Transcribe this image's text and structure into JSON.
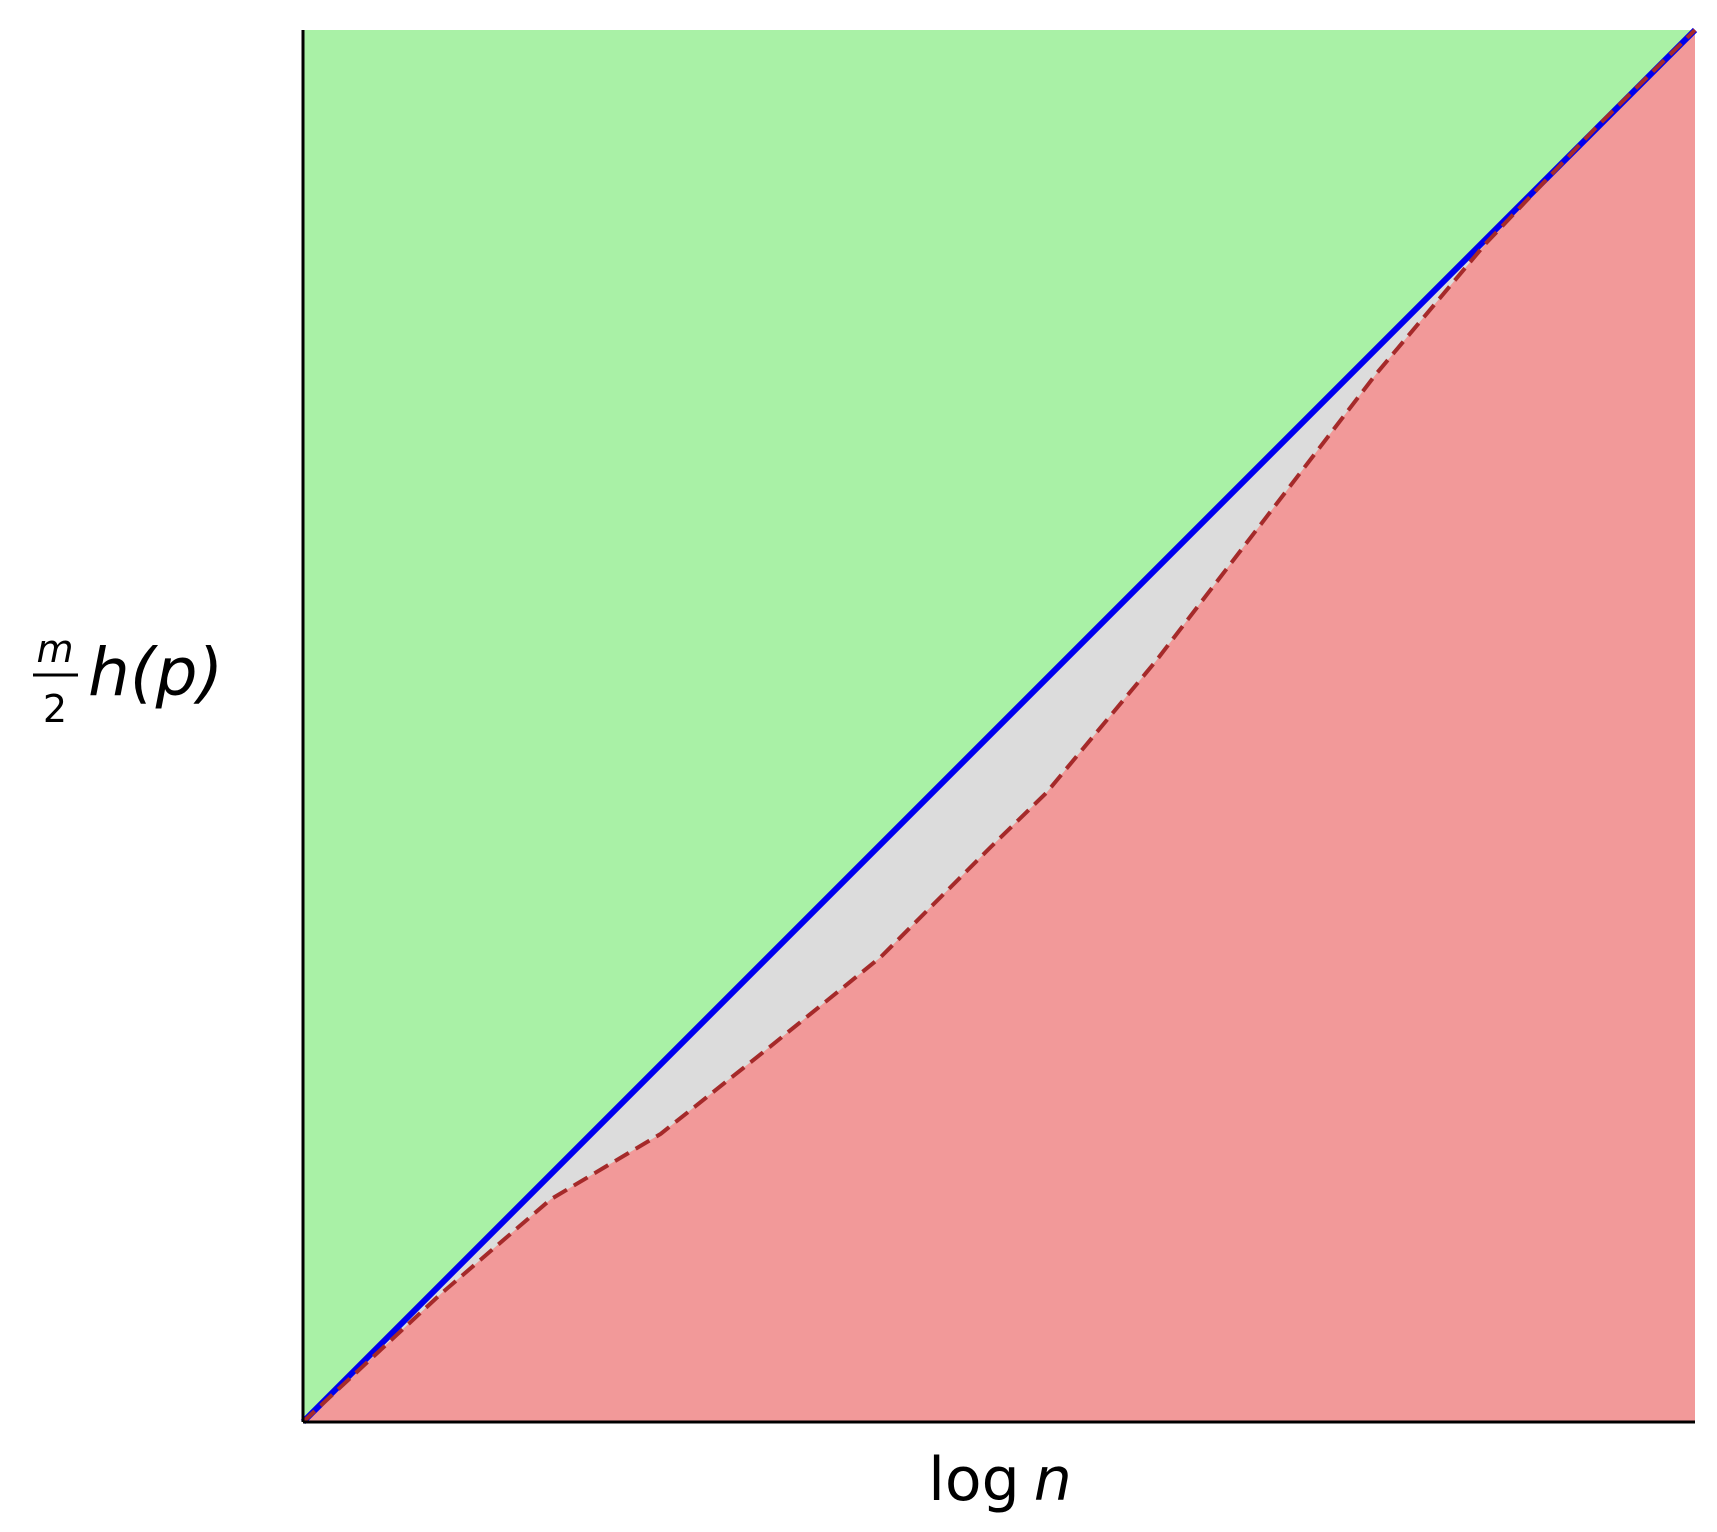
{
  "chart_data": {
    "type": "line",
    "xlabel": {
      "function": "log",
      "variable": "n"
    },
    "ylabel": {
      "numerator": "m",
      "denominator": "2",
      "text": "h(p)"
    },
    "xlim": [
      0,
      1
    ],
    "ylim": [
      0,
      1
    ],
    "fills": {
      "above": "#a9f1a6",
      "between": "#dcdcdc",
      "below": "#f29999"
    },
    "series": [
      {
        "color": "#0000ee",
        "style": "solid",
        "x": [
          0,
          1
        ],
        "values": [
          0,
          1
        ]
      },
      {
        "color": "#a52a2a",
        "style": "dashed",
        "x": [
          0,
          0.099,
          0.178,
          0.257,
          0.336,
          0.415,
          0.494,
          0.534,
          0.613,
          0.692,
          0.771,
          0.85,
          0.929,
          1
        ],
        "values": [
          0,
          0.092,
          0.16,
          0.207,
          0.27,
          0.334,
          0.413,
          0.452,
          0.547,
          0.65,
          0.753,
          0.847,
          0.93,
          1
        ]
      }
    ]
  }
}
